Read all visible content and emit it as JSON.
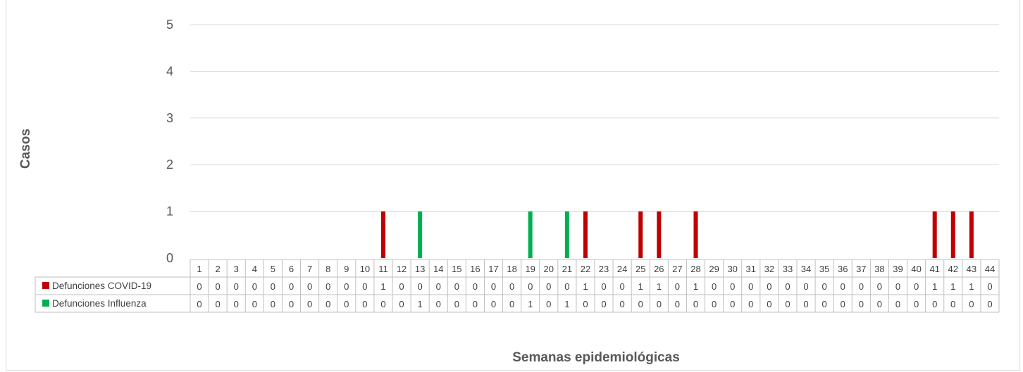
{
  "chart_data": {
    "type": "bar",
    "title": "",
    "xlabel": "Semanas epidemiológicas",
    "ylabel": "Casos",
    "ylim": [
      0,
      5
    ],
    "yticks": [
      0,
      1,
      2,
      3,
      4,
      5
    ],
    "grid": true,
    "legend_position": "data-table",
    "categories": [
      "1",
      "2",
      "3",
      "4",
      "5",
      "6",
      "7",
      "8",
      "9",
      "10",
      "11",
      "12",
      "13",
      "14",
      "15",
      "16",
      "17",
      "18",
      "19",
      "20",
      "21",
      "22",
      "23",
      "24",
      "25",
      "26",
      "27",
      "28",
      "29",
      "30",
      "31",
      "32",
      "33",
      "34",
      "35",
      "36",
      "37",
      "38",
      "39",
      "40",
      "41",
      "42",
      "43",
      "44"
    ],
    "series": [
      {
        "name": "Defunciones COVID-19",
        "color": "#c00000",
        "values": [
          0,
          0,
          0,
          0,
          0,
          0,
          0,
          0,
          0,
          0,
          1,
          0,
          0,
          0,
          0,
          0,
          0,
          0,
          0,
          0,
          0,
          1,
          0,
          0,
          1,
          1,
          0,
          1,
          0,
          0,
          0,
          0,
          0,
          0,
          0,
          0,
          0,
          0,
          0,
          0,
          1,
          1,
          1,
          0
        ]
      },
      {
        "name": "Defunciones Influenza",
        "color": "#00b050",
        "values": [
          0,
          0,
          0,
          0,
          0,
          0,
          0,
          0,
          0,
          0,
          0,
          0,
          1,
          0,
          0,
          0,
          0,
          0,
          1,
          0,
          1,
          0,
          0,
          0,
          0,
          0,
          0,
          0,
          0,
          0,
          0,
          0,
          0,
          0,
          0,
          0,
          0,
          0,
          0,
          0,
          0,
          0,
          0,
          0
        ]
      }
    ]
  }
}
